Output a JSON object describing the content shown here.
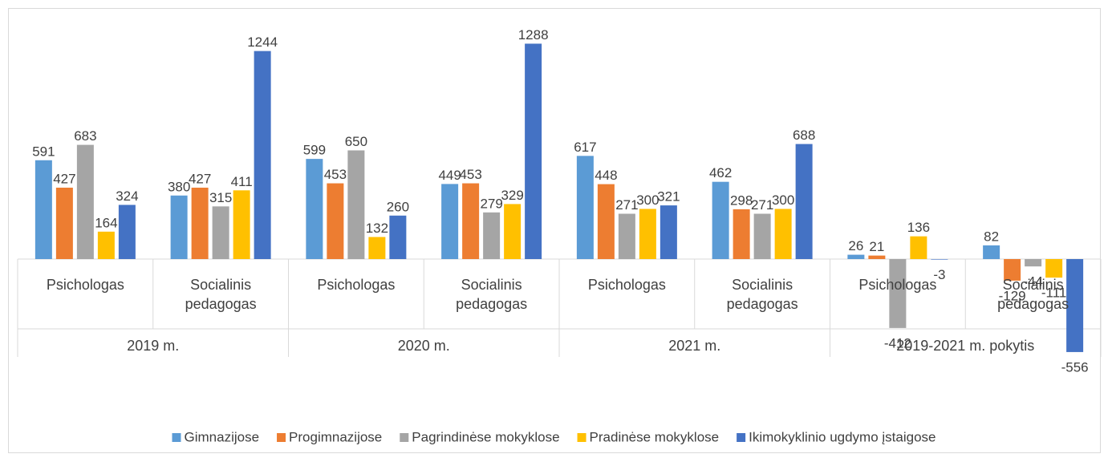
{
  "chart_data": {
    "type": "bar",
    "groups": [
      "2019 m.",
      "2020 m.",
      "2021 m.",
      "2019-2021 m. pokytis"
    ],
    "categories": [
      "Psichologas",
      "Socialinis pedagogas",
      "Psichologas",
      "Socialinis pedagogas",
      "Psichologas",
      "Socialinis pedagogas",
      "Psichologas",
      "Socialinis pedagogas"
    ],
    "series": [
      {
        "name": "Gimnazijose",
        "color": "#5b9bd5",
        "values": [
          591,
          380,
          599,
          449,
          617,
          462,
          26,
          82
        ]
      },
      {
        "name": "Progimnazijose",
        "color": "#ed7d31",
        "values": [
          427,
          427,
          453,
          453,
          448,
          298,
          21,
          -129
        ]
      },
      {
        "name": "Pagrindinėse mokyklose",
        "color": "#a5a5a5",
        "values": [
          683,
          315,
          650,
          279,
          271,
          271,
          -412,
          -44
        ]
      },
      {
        "name": "Pradinėse mokyklose",
        "color": "#ffc000",
        "values": [
          164,
          411,
          132,
          329,
          300,
          300,
          136,
          -111
        ]
      },
      {
        "name": "Ikimokyklinio ugdymo įstaigose",
        "color": "#4472c4",
        "values": [
          324,
          1244,
          260,
          1288,
          321,
          688,
          -3,
          -556
        ]
      }
    ],
    "legend": "bottom"
  }
}
